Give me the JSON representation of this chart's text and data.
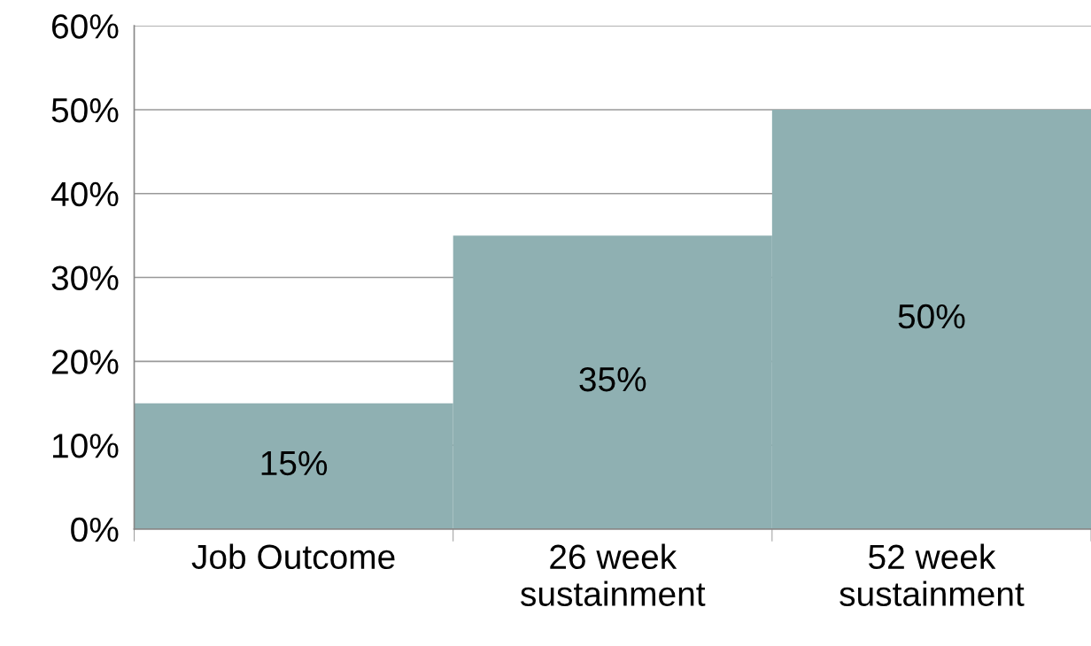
{
  "chart_data": {
    "type": "bar",
    "categories": [
      "Job Outcome",
      "26 week\nsustainment",
      "52 week\nsustainment"
    ],
    "values": [
      15,
      35,
      50
    ],
    "value_labels": [
      "15%",
      "35%",
      "50%"
    ],
    "color": "#8fb0b2",
    "ylim": [
      0,
      60
    ],
    "yticks": [
      {
        "value": 0,
        "label": "0%"
      },
      {
        "value": 10,
        "label": "10%"
      },
      {
        "value": 20,
        "label": "20%"
      },
      {
        "value": 30,
        "label": "30%"
      },
      {
        "value": 40,
        "label": "40%"
      },
      {
        "value": 50,
        "label": "50%"
      },
      {
        "value": 60,
        "label": "60%"
      }
    ],
    "grid": "y"
  }
}
